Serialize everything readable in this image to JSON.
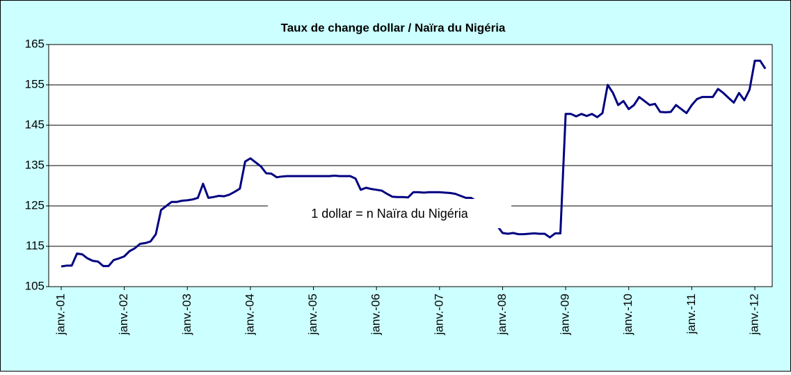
{
  "chart_data": {
    "type": "line",
    "title": "Taux de change dollar / Naïra du Nigéria",
    "annotation": "1 dollar = n Naïra du Nigéria",
    "categories": [
      "janv.-01",
      null,
      null,
      null,
      null,
      null,
      null,
      null,
      null,
      null,
      null,
      null,
      "janv.-02",
      null,
      null,
      null,
      null,
      null,
      null,
      null,
      null,
      null,
      null,
      null,
      "janv.-03",
      null,
      null,
      null,
      null,
      null,
      null,
      null,
      null,
      null,
      null,
      null,
      "janv.-04",
      null,
      null,
      null,
      null,
      null,
      null,
      null,
      null,
      null,
      null,
      null,
      "janv.-05",
      null,
      null,
      null,
      null,
      null,
      null,
      null,
      null,
      null,
      null,
      null,
      "janv.-06",
      null,
      null,
      null,
      null,
      null,
      null,
      null,
      null,
      null,
      null,
      null,
      "janv.-07",
      null,
      null,
      null,
      null,
      null,
      null,
      null,
      null,
      null,
      null,
      null,
      "janv.-08",
      null,
      null,
      null,
      null,
      null,
      null,
      null,
      null,
      null,
      null,
      null,
      "janv.-09",
      null,
      null,
      null,
      null,
      null,
      null,
      null,
      null,
      null,
      null,
      null,
      "janv.-10",
      null,
      null,
      null,
      null,
      null,
      null,
      null,
      null,
      null,
      null,
      null,
      "janv.-11",
      null,
      null,
      null,
      null,
      null,
      null,
      null,
      null,
      null,
      null,
      null,
      "janv.-12",
      null,
      null
    ],
    "values": [
      110,
      110.2,
      110.2,
      113.2,
      113,
      112,
      111.4,
      111.2,
      110.1,
      110.1,
      111.6,
      112,
      112.5,
      113.8,
      114.5,
      115.6,
      115.8,
      116.2,
      118,
      124,
      125,
      126,
      126,
      126.3,
      126.4,
      126.6,
      127,
      130.5,
      127,
      127.2,
      127.5,
      127.4,
      127.8,
      128.5,
      129.3,
      136,
      136.8,
      135.8,
      134.8,
      133.1,
      133,
      132.1,
      132.3,
      132.4,
      132.4,
      132.4,
      132.4,
      132.4,
      132.4,
      132.4,
      132.4,
      132.4,
      132.5,
      132.4,
      132.4,
      132.4,
      131.8,
      129,
      129.5,
      129.2,
      129,
      128.8,
      128,
      127.3,
      127.2,
      127.2,
      127.1,
      128.4,
      128.4,
      128.3,
      128.4,
      128.4,
      128.4,
      128.3,
      128.2,
      128,
      127.5,
      127,
      127,
      126.2,
      125.4,
      124,
      122,
      120,
      118.3,
      118.1,
      118.3,
      118,
      118,
      118.1,
      118.2,
      118.1,
      118.1,
      117.2,
      118.2,
      118.2,
      147.8,
      147.8,
      147.2,
      147.8,
      147.3,
      147.8,
      147,
      148,
      155,
      153,
      150,
      151,
      149,
      150,
      152,
      151,
      150,
      150.3,
      148.3,
      148.2,
      148.3,
      150,
      149,
      148,
      150,
      151.5,
      152,
      152,
      152,
      154,
      153,
      151.8,
      150.6,
      153,
      151.2,
      153.8,
      161,
      161,
      159
    ],
    "color": "#000080",
    "ylim": [
      105,
      165
    ],
    "yticks": [
      105,
      115,
      125,
      135,
      145,
      155,
      165
    ],
    "grid": true
  }
}
